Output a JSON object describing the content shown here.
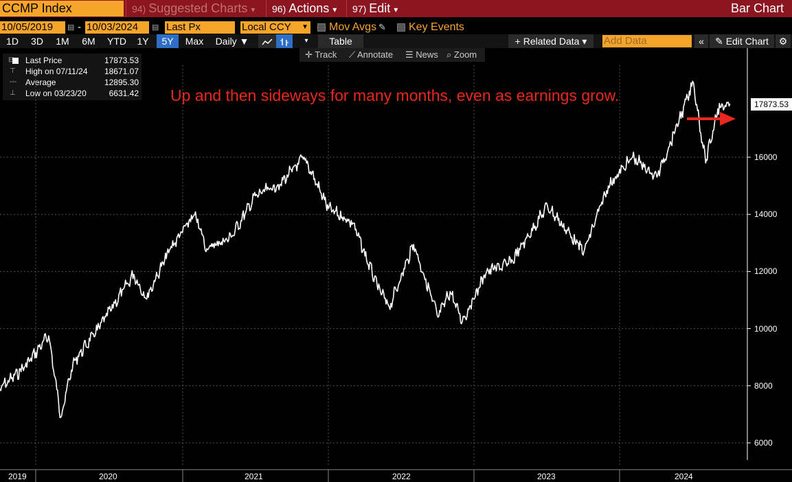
{
  "toolbar": {
    "ticker": "CCMP Index",
    "menu": [
      {
        "num": "94)",
        "label": "Suggested Charts",
        "arrow": "▾"
      },
      {
        "num": "96)",
        "label": "Actions",
        "arrow": "▾"
      },
      {
        "num": "97)",
        "label": "Edit",
        "arrow": "▾"
      }
    ],
    "title": "Bar Chart"
  },
  "params": {
    "start_date": "10/05/2019",
    "end_date": "10/03/2024",
    "dash": "-",
    "price_field": "Last Px",
    "currency": "Local CCY",
    "mov_avgs": "Mov Avgs",
    "key_events": "Key Events"
  },
  "periods": [
    "1D",
    "3D",
    "1M",
    "6M",
    "YTD",
    "1Y",
    "5Y",
    "Max"
  ],
  "frequency": "Daily ▼",
  "table_label": "Table",
  "related_data": "+ Related Data ▾",
  "add_data_placeholder": "Add Data",
  "edit_chart": "Edit Chart",
  "tools": [
    "Track",
    "Annotate",
    "News",
    "Zoom"
  ],
  "legend": [
    {
      "label": "Last Price",
      "value": "17873.53"
    },
    {
      "label": "High on 07/11/24",
      "value": "18671.07"
    },
    {
      "label": "Average",
      "value": "12895.30"
    },
    {
      "label": "Low on 03/23/20",
      "value": "6631.42"
    }
  ],
  "annotation": "Up and then sideways for many months, even as earnings grow.",
  "colors": {
    "accent": "#f7a52a",
    "header": "#8b1520",
    "annotation": "#e8281e",
    "selected": "#2d6fc7"
  },
  "chart_data": {
    "type": "line",
    "x_labels": [
      "2019",
      "2020",
      "2021",
      "2022",
      "2023",
      "2024"
    ],
    "y_ticks": [
      6000,
      8000,
      10000,
      12000,
      14000,
      16000
    ],
    "ylim": [
      5600,
      19200
    ],
    "last_value_label": "17873.53",
    "series": [
      {
        "x": [
          "2019-10",
          "2019-12",
          "2020-02",
          "2020-03",
          "2020-04",
          "2020-06",
          "2020-09",
          "2020-10",
          "2020-12",
          "2021-02",
          "2021-03",
          "2021-05",
          "2021-07",
          "2021-09",
          "2021-11",
          "2022-01",
          "2022-03",
          "2022-05",
          "2022-06",
          "2022-08",
          "2022-10",
          "2022-11",
          "2022-12",
          "2023-02",
          "2023-04",
          "2023-07",
          "2023-09",
          "2023-10",
          "2023-12",
          "2024-02",
          "2024-04",
          "2024-07",
          "2024-08",
          "2024-09",
          "2024-10"
        ],
        "values": [
          7900,
          8650,
          9750,
          6900,
          8800,
          9950,
          11900,
          11050,
          12800,
          14000,
          12800,
          13200,
          14650,
          15050,
          16000,
          14200,
          13700,
          11500,
          10750,
          12950,
          10400,
          11300,
          10250,
          12000,
          12300,
          14300,
          13200,
          12700,
          15000,
          16000,
          15300,
          18600,
          15800,
          17700,
          17873
        ]
      }
    ]
  }
}
